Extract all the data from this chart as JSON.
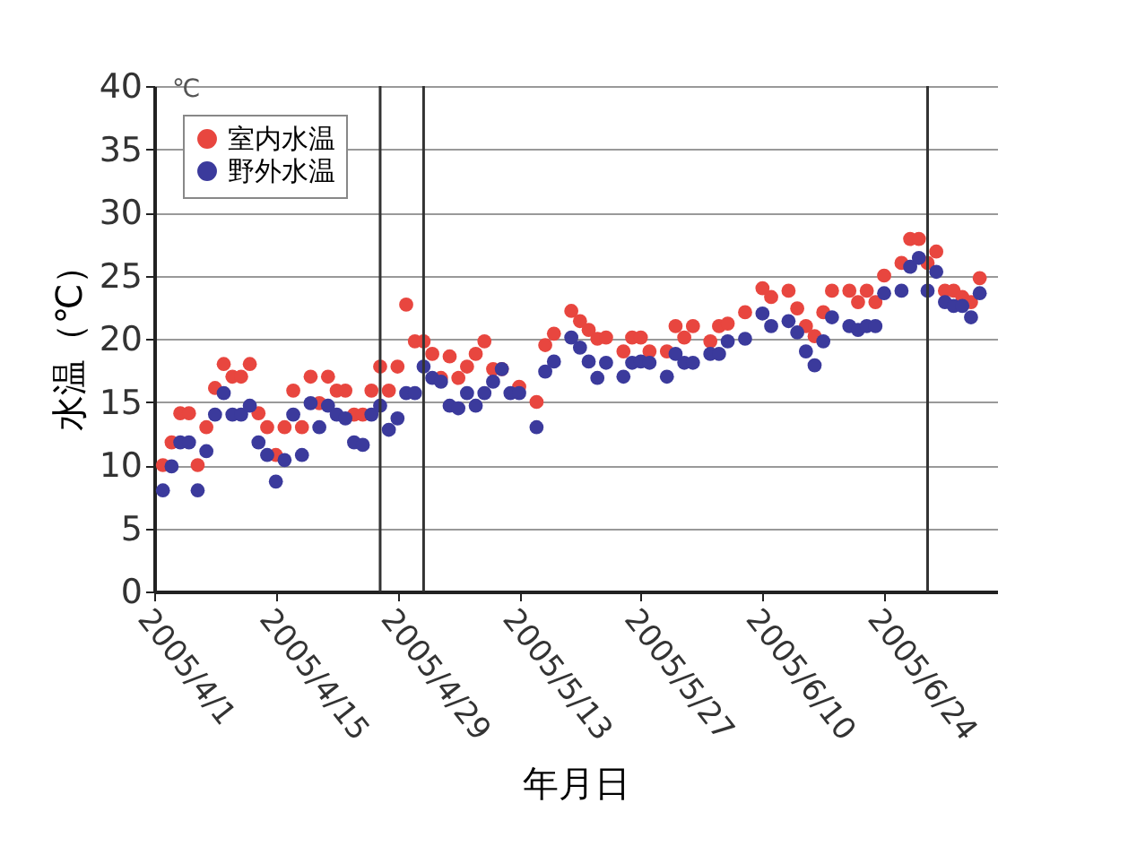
{
  "chart_data": {
    "type": "scatter",
    "xlabel": "年月日",
    "ylabel": "水温（℃）",
    "annotations": [
      "℃"
    ],
    "x": [
      "2005-04-02",
      "2005-04-03",
      "2005-04-04",
      "2005-04-05",
      "2005-04-06",
      "2005-04-07",
      "2005-04-08",
      "2005-04-09",
      "2005-04-10",
      "2005-04-11",
      "2005-04-12",
      "2005-04-13",
      "2005-04-14",
      "2005-04-15",
      "2005-04-16",
      "2005-04-17",
      "2005-04-18",
      "2005-04-19",
      "2005-04-20",
      "2005-04-21",
      "2005-04-22",
      "2005-04-23",
      "2005-04-24",
      "2005-04-25",
      "2005-04-26",
      "2005-04-27",
      "2005-04-28",
      "2005-04-29",
      "2005-04-30",
      "2005-05-01",
      "2005-05-02",
      "2005-05-03",
      "2005-05-04",
      "2005-05-05",
      "2005-05-06",
      "2005-05-07",
      "2005-05-08",
      "2005-05-09",
      "2005-05-10",
      "2005-05-11",
      "2005-05-12",
      "2005-05-13",
      "2005-05-15",
      "2005-05-16",
      "2005-05-17",
      "2005-05-19",
      "2005-05-20",
      "2005-05-21",
      "2005-05-22",
      "2005-05-23",
      "2005-05-25",
      "2005-05-26",
      "2005-05-27",
      "2005-05-28",
      "2005-05-30",
      "2005-05-31",
      "2005-06-01",
      "2005-06-02",
      "2005-06-04",
      "2005-06-05",
      "2005-06-06",
      "2005-06-08",
      "2005-06-10",
      "2005-06-11",
      "2005-06-13",
      "2005-06-14",
      "2005-06-15",
      "2005-06-16",
      "2005-06-17",
      "2005-06-18",
      "2005-06-20",
      "2005-06-21",
      "2005-06-22",
      "2005-06-23",
      "2005-06-24",
      "2005-06-26",
      "2005-06-27",
      "2005-06-28",
      "2005-06-29",
      "2005-06-30",
      "2005-07-01",
      "2005-07-02",
      "2005-07-03",
      "2005-07-04",
      "2005-07-05"
    ],
    "series": [
      {
        "name": "室内水温",
        "color": "#e8463f",
        "values": [
          10.0,
          11.8,
          14.1,
          14.1,
          10.0,
          13.0,
          16.1,
          18.0,
          17.0,
          17.0,
          18.0,
          14.1,
          13.0,
          10.8,
          13.0,
          15.9,
          13.0,
          17.0,
          14.9,
          17.0,
          15.9,
          15.9,
          14.0,
          14.0,
          15.9,
          17.8,
          15.9,
          17.8,
          22.7,
          19.8,
          19.8,
          18.8,
          16.9,
          18.6,
          16.9,
          17.8,
          18.8,
          19.8,
          17.6,
          17.6,
          null,
          16.2,
          15.0,
          19.5,
          20.4,
          22.2,
          21.4,
          20.7,
          20.0,
          20.1,
          19.0,
          20.1,
          20.1,
          19.0,
          19.0,
          21.0,
          20.1,
          21.0,
          19.8,
          21.0,
          21.2,
          22.1,
          24.0,
          23.3,
          23.8,
          22.4,
          21.0,
          20.2,
          22.1,
          23.8,
          23.8,
          22.9,
          23.8,
          22.9,
          25.0,
          26.0,
          27.9,
          27.9,
          26.0,
          26.9,
          23.8,
          23.8,
          23.3,
          22.9,
          24.8
        ]
      },
      {
        "name": "野外水温",
        "color": "#3b3a9c",
        "values": [
          8.0,
          9.9,
          11.8,
          11.8,
          8.0,
          11.1,
          14.0,
          15.7,
          14.0,
          14.0,
          14.7,
          11.8,
          10.8,
          8.7,
          10.4,
          14.0,
          10.8,
          14.9,
          13.0,
          14.7,
          14.0,
          13.7,
          11.8,
          11.6,
          14.0,
          14.7,
          12.8,
          13.7,
          15.7,
          15.7,
          17.8,
          16.9,
          16.6,
          14.7,
          14.5,
          15.7,
          14.7,
          15.7,
          16.6,
          17.6,
          15.7,
          15.7,
          13.0,
          17.4,
          18.2,
          20.1,
          19.3,
          18.2,
          16.9,
          18.1,
          17.0,
          18.1,
          18.2,
          18.1,
          17.0,
          18.8,
          18.1,
          18.1,
          18.8,
          18.8,
          19.8,
          20.0,
          22.0,
          21.0,
          21.4,
          20.5,
          19.0,
          17.9,
          19.8,
          21.7,
          21.0,
          20.7,
          21.0,
          21.0,
          23.6,
          23.8,
          25.7,
          26.4,
          23.8,
          25.3,
          22.9,
          22.6,
          22.6,
          21.7,
          23.6
        ]
      }
    ],
    "xlim": [
      "2005-04-01",
      "2005-07-07"
    ],
    "xticks": [
      {
        "value": "2005-04-01",
        "label": "2005/4/1"
      },
      {
        "value": "2005-04-15",
        "label": "2005/4/15"
      },
      {
        "value": "2005-04-29",
        "label": "2005/4/29"
      },
      {
        "value": "2005-05-13",
        "label": "2005/5/13"
      },
      {
        "value": "2005-05-27",
        "label": "2005/5/27"
      },
      {
        "value": "2005-06-10",
        "label": "2005/6/10"
      },
      {
        "value": "2005-06-24",
        "label": "2005/6/24"
      }
    ],
    "ylim": [
      0,
      40
    ],
    "yticks": [
      0,
      5,
      10,
      15,
      20,
      25,
      30,
      35,
      40
    ],
    "ref_lines": [
      {
        "axis": "x",
        "value": "2005-04-27",
        "color": "#333333"
      },
      {
        "axis": "x",
        "value": "2005-05-02",
        "color": "#333333"
      },
      {
        "axis": "x",
        "value": "2005-06-29",
        "color": "#333333"
      }
    ],
    "grid": "y",
    "legend": "top left",
    "marker": "circle"
  }
}
